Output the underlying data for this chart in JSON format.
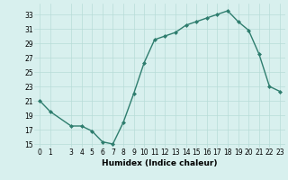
{
  "x": [
    0,
    1,
    3,
    4,
    5,
    6,
    7,
    8,
    9,
    10,
    11,
    12,
    13,
    14,
    15,
    16,
    17,
    18,
    19,
    20,
    21,
    22,
    23
  ],
  "y": [
    21,
    19.5,
    17.5,
    17.5,
    16.8,
    15.3,
    15.0,
    18.0,
    22.0,
    26.3,
    29.5,
    30.0,
    30.5,
    31.5,
    32.0,
    32.5,
    33.0,
    33.5,
    32.0,
    30.8,
    27.5,
    23.0,
    22.3
  ],
  "line_color": "#2e7d6e",
  "marker": "D",
  "markersize": 2.0,
  "linewidth": 1.0,
  "bg_color": "#d8f0ee",
  "grid_color": "#b8dcd8",
  "xlabel": "Humidex (Indice chaleur)",
  "xlabel_fontsize": 6.5,
  "xlabel_bold": true,
  "yticks": [
    15,
    17,
    19,
    21,
    23,
    25,
    27,
    29,
    31,
    33
  ],
  "xticks": [
    0,
    1,
    3,
    4,
    5,
    6,
    7,
    8,
    9,
    10,
    11,
    12,
    13,
    14,
    15,
    16,
    17,
    18,
    19,
    20,
    21,
    22,
    23
  ],
  "ylim": [
    14.5,
    34.5
  ],
  "xlim": [
    -0.5,
    23.5
  ],
  "tick_fontsize": 5.5
}
